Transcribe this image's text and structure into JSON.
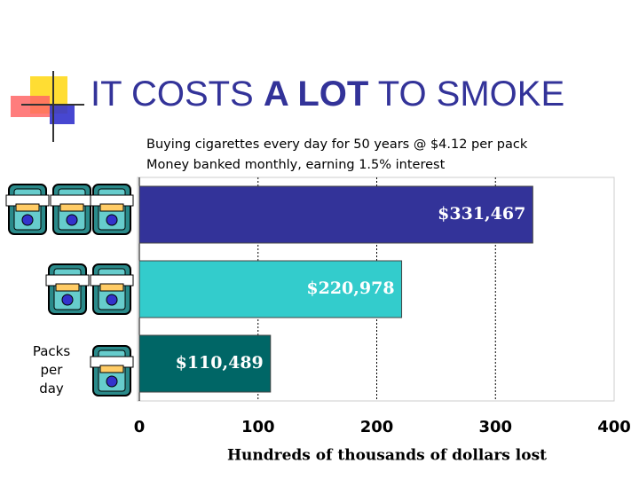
{
  "chart_data": {
    "type": "barh",
    "title": [
      "IT COSTS ",
      "A LOT",
      " TO SMOKE"
    ],
    "subtitle": [
      "Buying cigarettes every day for 50 years @ $4.12 per pack",
      "Money banked monthly, earning 1.5% interest"
    ],
    "ylabel": "Packs per day",
    "xlabel": "Hundreds of thousands of dollars lost",
    "categories": [
      null,
      null,
      null
    ],
    "values": [
      331.467,
      220.978,
      110.489
    ],
    "value_labels": [
      "$331,467",
      "$220,978",
      "$110,489"
    ],
    "colors": [
      "#333399",
      "#33cccc",
      "#006666"
    ],
    "xlim": [
      0,
      400
    ],
    "xticks": [
      0,
      100,
      200,
      300,
      400
    ],
    "grid": true
  }
}
